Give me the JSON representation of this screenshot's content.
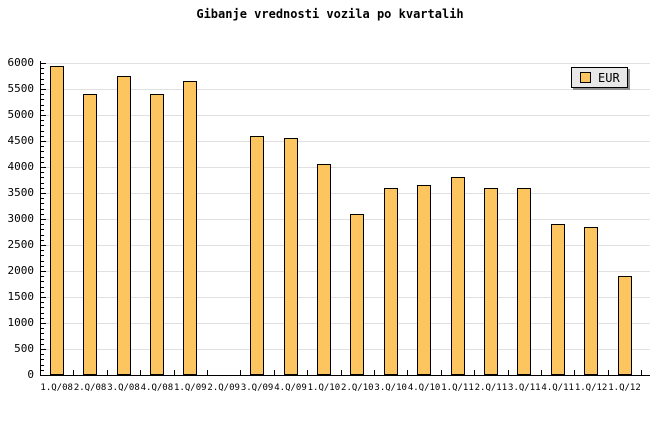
{
  "title": "Gibanje vrednosti vozila po kvartalih",
  "legend": {
    "label": "EUR"
  },
  "colors": {
    "background": "#ffffff",
    "bar_fill": "#fcc55f",
    "bar_border": "#000000",
    "gridline": "#e0e0e0",
    "axis": "#000000",
    "legend_bg": "#e8e8e8"
  },
  "chart_data": {
    "type": "bar",
    "title": "Gibanje vrednosti vozila po kvartalih",
    "xlabel": "",
    "ylabel": "",
    "ylim": [
      0,
      6000
    ],
    "ytick_step": 500,
    "ytick_minor_step": 100,
    "yticks": [
      0,
      500,
      1000,
      1500,
      2000,
      2500,
      3000,
      3500,
      4000,
      4500,
      5000,
      5500,
      6000
    ],
    "grid": "horizontal gridlines only",
    "legend_position": "top-right",
    "categories": [
      "1.Q/08",
      "2.Q/08",
      "3.Q/08",
      "4.Q/08",
      "1.Q/09",
      "2.Q/09",
      "3.Q/09",
      "4.Q/09",
      "1.Q/10",
      "2.Q/10",
      "3.Q/10",
      "4.Q/10",
      "1.Q/11",
      "2.Q/11",
      "3.Q/11",
      "4.Q/11",
      "1.Q/12",
      "1.Q/12"
    ],
    "series": [
      {
        "name": "EUR",
        "values": [
          5950,
          5400,
          5750,
          5400,
          5650,
          null,
          4600,
          4550,
          4050,
          3100,
          3600,
          3650,
          3800,
          3600,
          3600,
          2900,
          2850,
          1900
        ]
      }
    ],
    "missing_categories": [
      "2.Q/09"
    ]
  }
}
